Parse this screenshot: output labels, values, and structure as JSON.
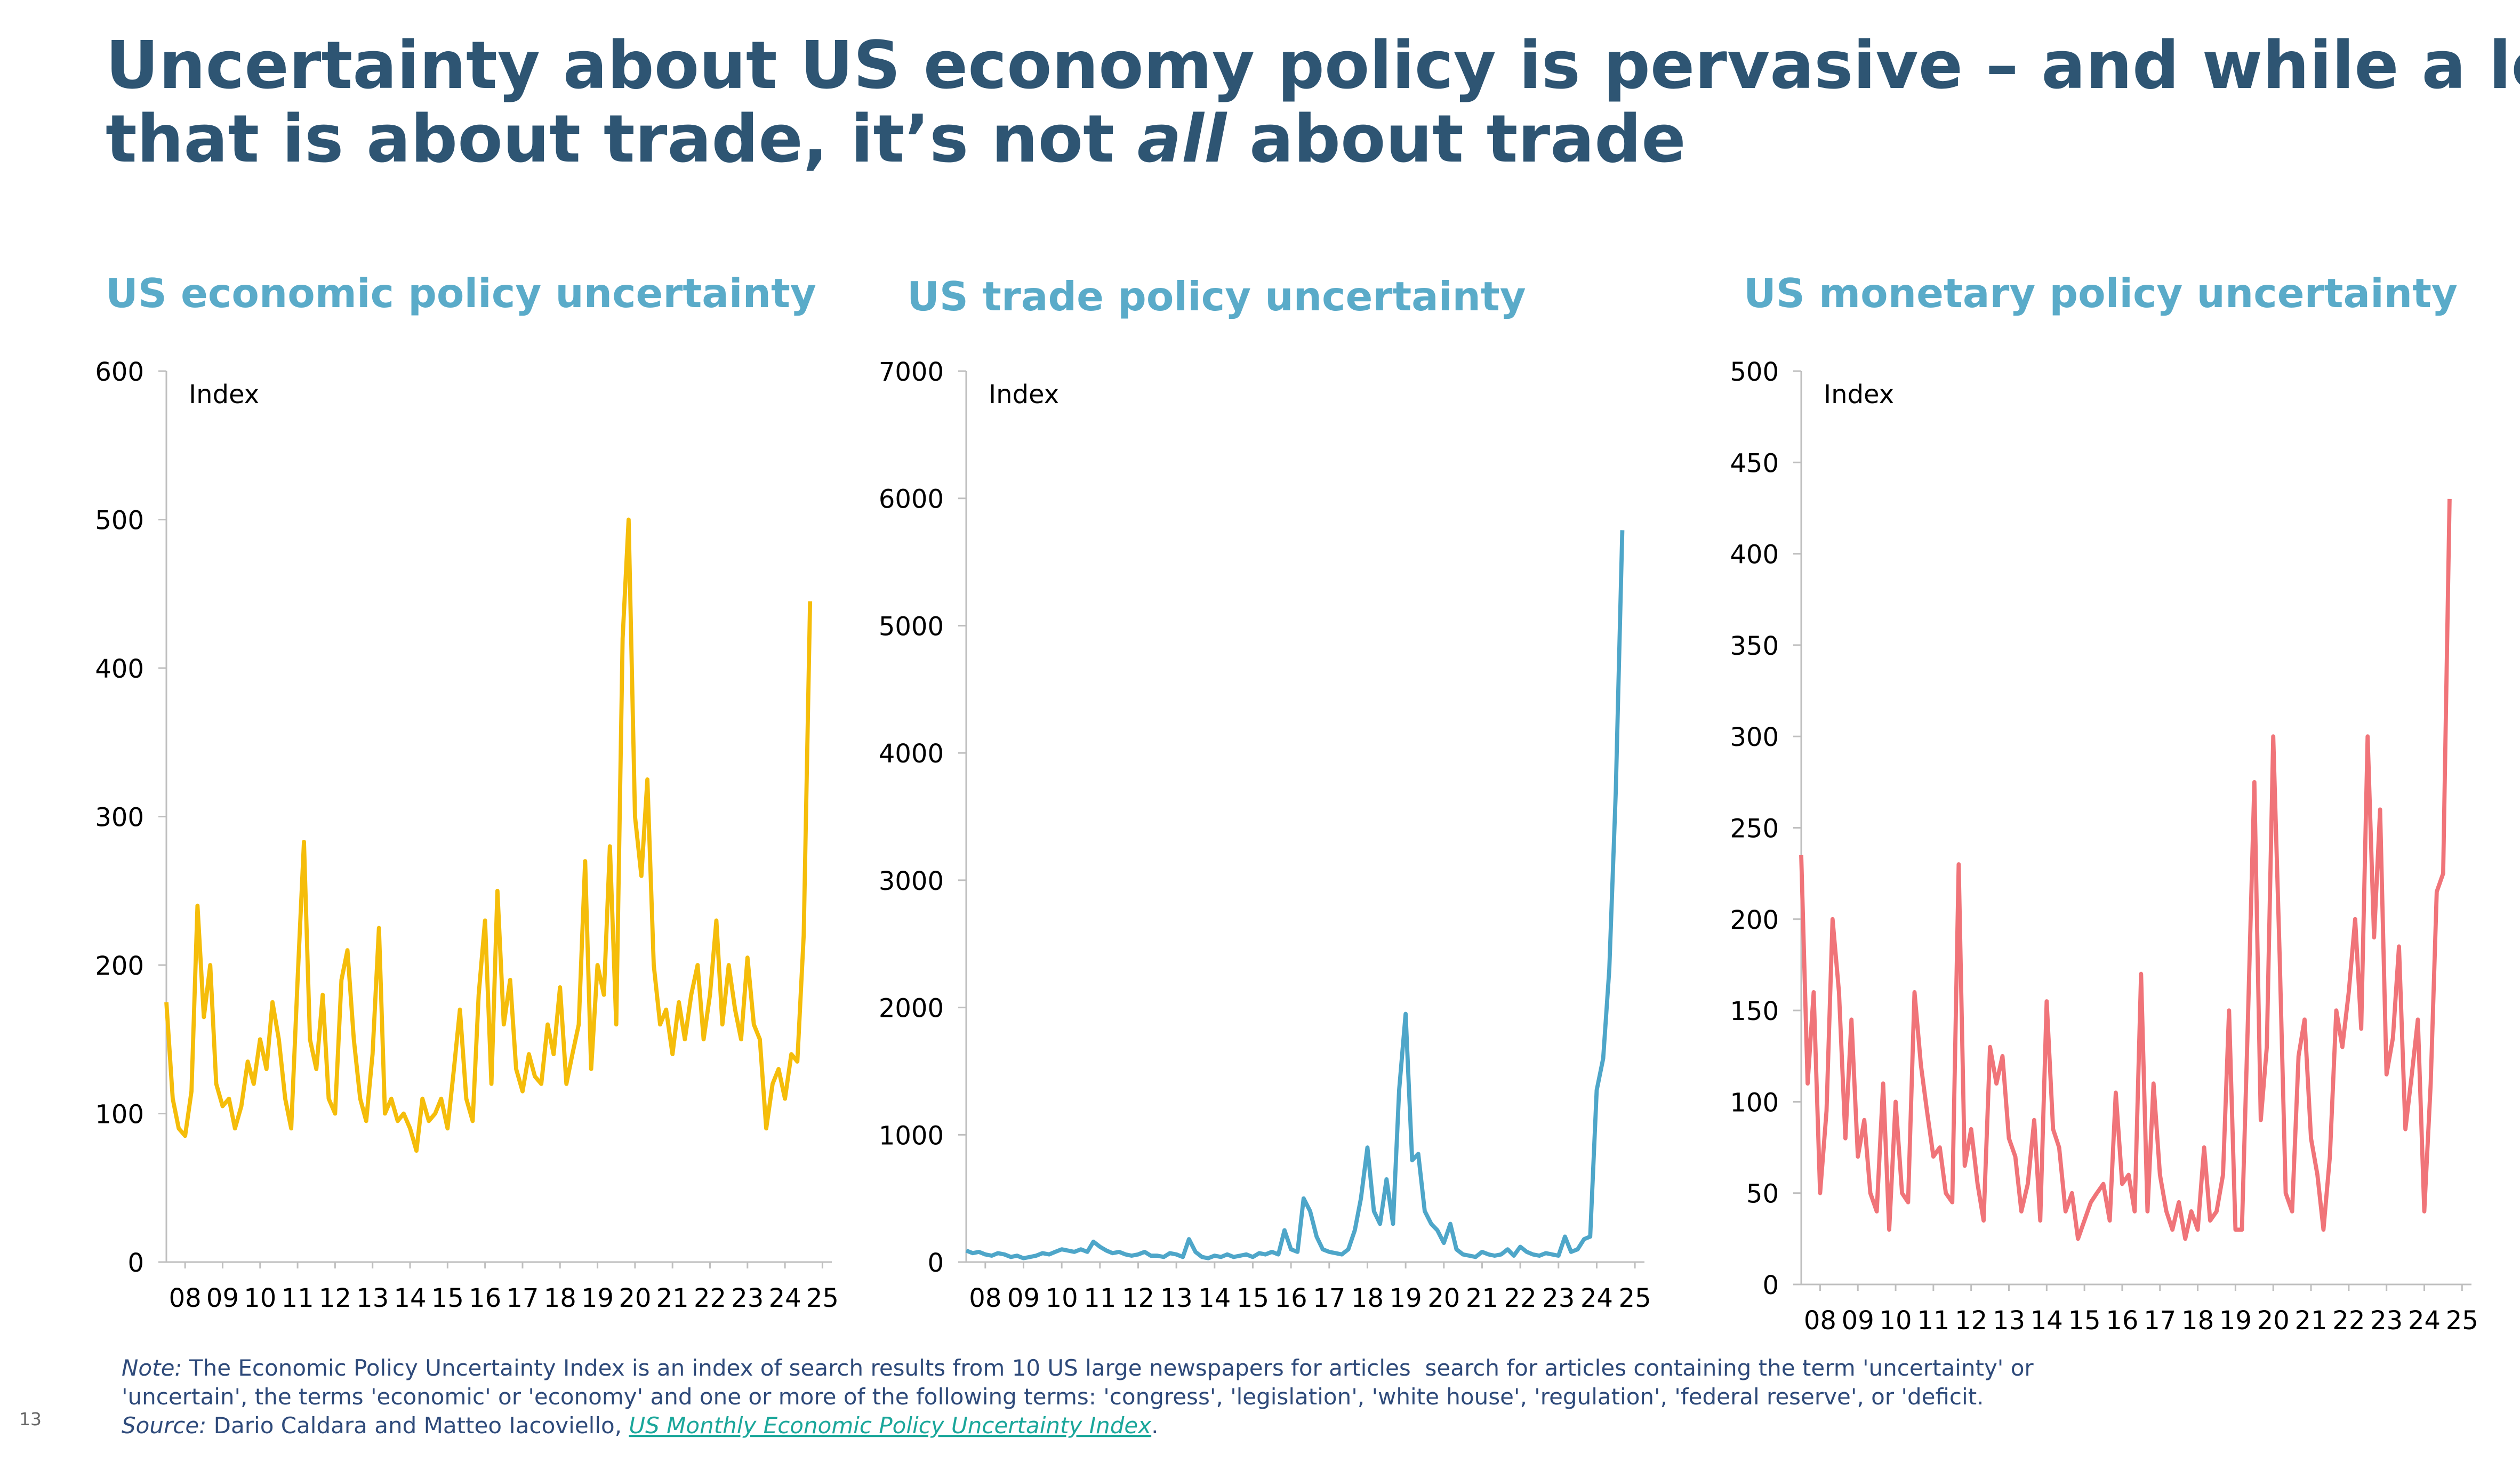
{
  "header": {
    "title_line1": "Uncertainty about US economy policy is pervasive – and while a lot of",
    "title_line2_parts": [
      "that is about trade, it’s not ",
      "all",
      " about trade"
    ]
  },
  "chart_data": [
    {
      "type": "line",
      "title": "US economic policy uncertainty",
      "y_label": "Index",
      "color": "#f5bd0a",
      "x": [
        2008,
        2008.17,
        2008.33,
        2008.5,
        2008.67,
        2008.83,
        2009,
        2009.17,
        2009.33,
        2009.5,
        2009.67,
        2009.83,
        2010,
        2010.17,
        2010.33,
        2010.5,
        2010.67,
        2010.83,
        2011,
        2011.17,
        2011.33,
        2011.5,
        2011.67,
        2011.83,
        2012,
        2012.17,
        2012.33,
        2012.5,
        2012.67,
        2012.83,
        2013,
        2013.17,
        2013.33,
        2013.5,
        2013.67,
        2013.83,
        2014,
        2014.17,
        2014.33,
        2014.5,
        2014.67,
        2014.83,
        2015,
        2015.17,
        2015.33,
        2015.5,
        2015.67,
        2015.83,
        2016,
        2016.17,
        2016.33,
        2016.5,
        2016.67,
        2016.83,
        2017,
        2017.17,
        2017.33,
        2017.5,
        2017.67,
        2017.83,
        2018,
        2018.17,
        2018.33,
        2018.5,
        2018.67,
        2018.83,
        2019,
        2019.17,
        2019.33,
        2019.5,
        2019.67,
        2019.83,
        2020,
        2020.17,
        2020.33,
        2020.5,
        2020.67,
        2020.83,
        2021,
        2021.17,
        2021.33,
        2021.5,
        2021.67,
        2021.83,
        2022,
        2022.17,
        2022.33,
        2022.5,
        2022.67,
        2022.83,
        2023,
        2023.17,
        2023.33,
        2023.5,
        2023.67,
        2023.83,
        2024,
        2024.17,
        2024.33,
        2024.5,
        2024.67,
        2024.83,
        2025,
        2025.17
      ],
      "values": [
        175,
        110,
        90,
        85,
        115,
        240,
        165,
        200,
        120,
        105,
        110,
        90,
        105,
        135,
        120,
        150,
        130,
        175,
        150,
        110,
        90,
        190,
        283,
        150,
        130,
        180,
        110,
        100,
        190,
        210,
        150,
        110,
        95,
        140,
        225,
        100,
        110,
        95,
        100,
        90,
        75,
        110,
        95,
        100,
        110,
        90,
        130,
        170,
        110,
        95,
        180,
        230,
        120,
        250,
        160,
        190,
        130,
        115,
        140,
        125,
        120,
        160,
        140,
        185,
        120,
        140,
        160,
        270,
        130,
        200,
        180,
        280,
        160,
        420,
        500,
        300,
        260,
        325,
        200,
        160,
        170,
        140,
        175,
        150,
        180,
        200,
        150,
        180,
        230,
        160,
        200,
        170,
        150,
        205,
        160,
        150,
        90,
        120,
        130,
        110,
        140,
        135,
        220,
        445
      ],
      "xlim": [
        2008,
        2025.75
      ],
      "ylim": [
        0,
        600
      ],
      "yticks": [
        0,
        100,
        200,
        300,
        400,
        500,
        600
      ],
      "xticks": [
        {
          "value": 2008.5,
          "label": "08"
        },
        {
          "value": 2009.5,
          "label": "09"
        },
        {
          "value": 2010.5,
          "label": "10"
        },
        {
          "value": 2011.5,
          "label": "11"
        },
        {
          "value": 2012.5,
          "label": "12"
        },
        {
          "value": 2013.5,
          "label": "13"
        },
        {
          "value": 2014.5,
          "label": "14"
        },
        {
          "value": 2015.5,
          "label": "15"
        },
        {
          "value": 2016.5,
          "label": "16"
        },
        {
          "value": 2017.5,
          "label": "17"
        },
        {
          "value": 2018.5,
          "label": "18"
        },
        {
          "value": 2019.5,
          "label": "19"
        },
        {
          "value": 2020.5,
          "label": "20"
        },
        {
          "value": 2021.5,
          "label": "21"
        },
        {
          "value": 2022.5,
          "label": "22"
        },
        {
          "value": 2023.5,
          "label": "23"
        },
        {
          "value": 2024.5,
          "label": "24"
        },
        {
          "value": 2025.5,
          "label": "25"
        }
      ]
    },
    {
      "type": "line",
      "title": "US trade policy uncertainty",
      "y_label": "Index",
      "color": "#4ea6c9",
      "x": [
        2008,
        2008.17,
        2008.33,
        2008.5,
        2008.67,
        2008.83,
        2009,
        2009.17,
        2009.33,
        2009.5,
        2009.67,
        2009.83,
        2010,
        2010.17,
        2010.33,
        2010.5,
        2010.67,
        2010.83,
        2011,
        2011.17,
        2011.33,
        2011.5,
        2011.67,
        2011.83,
        2012,
        2012.17,
        2012.33,
        2012.5,
        2012.67,
        2012.83,
        2013,
        2013.17,
        2013.33,
        2013.5,
        2013.67,
        2013.83,
        2014,
        2014.17,
        2014.33,
        2014.5,
        2014.67,
        2014.83,
        2015,
        2015.17,
        2015.33,
        2015.5,
        2015.67,
        2015.83,
        2016,
        2016.17,
        2016.33,
        2016.5,
        2016.67,
        2016.83,
        2017,
        2017.17,
        2017.33,
        2017.5,
        2017.67,
        2017.83,
        2018,
        2018.17,
        2018.33,
        2018.5,
        2018.67,
        2018.83,
        2019,
        2019.17,
        2019.33,
        2019.5,
        2019.67,
        2019.83,
        2020,
        2020.17,
        2020.33,
        2020.5,
        2020.67,
        2020.83,
        2021,
        2021.17,
        2021.33,
        2021.5,
        2021.67,
        2021.83,
        2022,
        2022.17,
        2022.33,
        2022.5,
        2022.67,
        2022.83,
        2023,
        2023.17,
        2023.33,
        2023.5,
        2023.67,
        2023.83,
        2024,
        2024.17,
        2024.33,
        2024.5,
        2024.67,
        2024.83,
        2025,
        2025.17
      ],
      "values": [
        90,
        70,
        80,
        60,
        50,
        70,
        60,
        40,
        50,
        30,
        40,
        50,
        70,
        60,
        80,
        100,
        90,
        80,
        100,
        80,
        160,
        120,
        90,
        70,
        80,
        60,
        50,
        60,
        80,
        50,
        50,
        40,
        70,
        60,
        40,
        180,
        80,
        40,
        30,
        50,
        40,
        60,
        40,
        50,
        60,
        40,
        70,
        60,
        80,
        60,
        250,
        100,
        80,
        500,
        400,
        200,
        100,
        80,
        70,
        60,
        100,
        250,
        500,
        900,
        400,
        300,
        650,
        300,
        1350,
        1950,
        800,
        850,
        400,
        300,
        250,
        150,
        300,
        100,
        60,
        50,
        40,
        80,
        60,
        50,
        60,
        100,
        50,
        120,
        80,
        60,
        50,
        70,
        60,
        50,
        200,
        80,
        100,
        180,
        200,
        1350,
        1600,
        2300,
        3700,
        5750
      ],
      "xlim": [
        2008,
        2025.75
      ],
      "ylim": [
        0,
        7000
      ],
      "yticks": [
        0,
        1000,
        2000,
        3000,
        4000,
        5000,
        6000,
        7000
      ],
      "xticks": [
        {
          "value": 2008.5,
          "label": "08"
        },
        {
          "value": 2009.5,
          "label": "09"
        },
        {
          "value": 2010.5,
          "label": "10"
        },
        {
          "value": 2011.5,
          "label": "11"
        },
        {
          "value": 2012.5,
          "label": "12"
        },
        {
          "value": 2013.5,
          "label": "13"
        },
        {
          "value": 2014.5,
          "label": "14"
        },
        {
          "value": 2015.5,
          "label": "15"
        },
        {
          "value": 2016.5,
          "label": "16"
        },
        {
          "value": 2017.5,
          "label": "17"
        },
        {
          "value": 2018.5,
          "label": "18"
        },
        {
          "value": 2019.5,
          "label": "19"
        },
        {
          "value": 2020.5,
          "label": "20"
        },
        {
          "value": 2021.5,
          "label": "21"
        },
        {
          "value": 2022.5,
          "label": "22"
        },
        {
          "value": 2023.5,
          "label": "23"
        },
        {
          "value": 2024.5,
          "label": "24"
        },
        {
          "value": 2025.5,
          "label": "25"
        }
      ]
    },
    {
      "type": "line",
      "title": "US monetary policy uncertainty",
      "y_label": "Index",
      "color": "#f07479",
      "x": [
        2008,
        2008.17,
        2008.33,
        2008.5,
        2008.67,
        2008.83,
        2009,
        2009.17,
        2009.33,
        2009.5,
        2009.67,
        2009.83,
        2010,
        2010.17,
        2010.33,
        2010.5,
        2010.67,
        2010.83,
        2011,
        2011.17,
        2011.33,
        2011.5,
        2011.67,
        2011.83,
        2012,
        2012.17,
        2012.33,
        2012.5,
        2012.67,
        2012.83,
        2013,
        2013.17,
        2013.33,
        2013.5,
        2013.67,
        2013.83,
        2014,
        2014.17,
        2014.33,
        2014.5,
        2014.67,
        2014.83,
        2015,
        2015.17,
        2015.33,
        2015.5,
        2015.67,
        2015.83,
        2016,
        2016.17,
        2016.33,
        2016.5,
        2016.67,
        2016.83,
        2017,
        2017.17,
        2017.33,
        2017.5,
        2017.67,
        2017.83,
        2018,
        2018.17,
        2018.33,
        2018.5,
        2018.67,
        2018.83,
        2019,
        2019.17,
        2019.33,
        2019.5,
        2019.67,
        2019.83,
        2020,
        2020.17,
        2020.33,
        2020.5,
        2020.67,
        2020.83,
        2021,
        2021.17,
        2021.33,
        2021.5,
        2021.67,
        2021.83,
        2022,
        2022.17,
        2022.33,
        2022.5,
        2022.67,
        2022.83,
        2023,
        2023.17,
        2023.33,
        2023.5,
        2023.67,
        2023.83,
        2024,
        2024.17,
        2024.33,
        2024.5,
        2024.67,
        2024.83,
        2025,
        2025.17
      ],
      "values": [
        235,
        110,
        160,
        50,
        95,
        200,
        160,
        80,
        145,
        70,
        90,
        50,
        40,
        110,
        30,
        100,
        50,
        45,
        160,
        120,
        95,
        70,
        75,
        50,
        45,
        230,
        65,
        85,
        55,
        35,
        130,
        110,
        125,
        80,
        70,
        40,
        55,
        90,
        35,
        155,
        85,
        75,
        40,
        50,
        25,
        35,
        45,
        50,
        55,
        35,
        105,
        55,
        60,
        40,
        170,
        40,
        110,
        60,
        40,
        30,
        45,
        25,
        40,
        30,
        75,
        35,
        40,
        60,
        150,
        30,
        30,
        145,
        275,
        90,
        130,
        300,
        180,
        50,
        40,
        125,
        145,
        80,
        60,
        30,
        70,
        150,
        130,
        160,
        200,
        140,
        300,
        190,
        260,
        115,
        135,
        185,
        85,
        115,
        145,
        40,
        110,
        215,
        225,
        430
      ],
      "xlim": [
        2008,
        2025.75
      ],
      "ylim": [
        0,
        500
      ],
      "yticks": [
        0,
        50,
        100,
        150,
        200,
        250,
        300,
        350,
        400,
        450,
        500
      ],
      "xticks": [
        {
          "value": 2008.5,
          "label": "08"
        },
        {
          "value": 2009.5,
          "label": "09"
        },
        {
          "value": 2010.5,
          "label": "10"
        },
        {
          "value": 2011.5,
          "label": "11"
        },
        {
          "value": 2012.5,
          "label": "12"
        },
        {
          "value": 2013.5,
          "label": "13"
        },
        {
          "value": 2014.5,
          "label": "14"
        },
        {
          "value": 2015.5,
          "label": "15"
        },
        {
          "value": 2016.5,
          "label": "16"
        },
        {
          "value": 2017.5,
          "label": "17"
        },
        {
          "value": 2018.5,
          "label": "18"
        },
        {
          "value": 2019.5,
          "label": "19"
        },
        {
          "value": 2020.5,
          "label": "20"
        },
        {
          "value": 2021.5,
          "label": "21"
        },
        {
          "value": 2022.5,
          "label": "22"
        },
        {
          "value": 2023.5,
          "label": "23"
        },
        {
          "value": 2024.5,
          "label": "24"
        },
        {
          "value": 2025.5,
          "label": "25"
        }
      ]
    }
  ],
  "footer": {
    "note_label": "Note:",
    "note_lines": [
      " The Economic Policy Uncertainty Index is an index of search results from 10 US large newspapers for articles  search for articles containing the term 'uncertainty' or",
      "'uncertain', the terms 'economic' or 'economy' and one or more of the following terms: 'congress', 'legislation', 'white house', 'regulation', 'federal reserve', or 'deficit."
    ],
    "source_label": "Source:",
    "source_text": " Dario Caldara and Matteo Iacoviello, ",
    "source_link": "US Monthly Economic Policy Uncertainty Index",
    "source_end": ".",
    "page_number": "13"
  }
}
